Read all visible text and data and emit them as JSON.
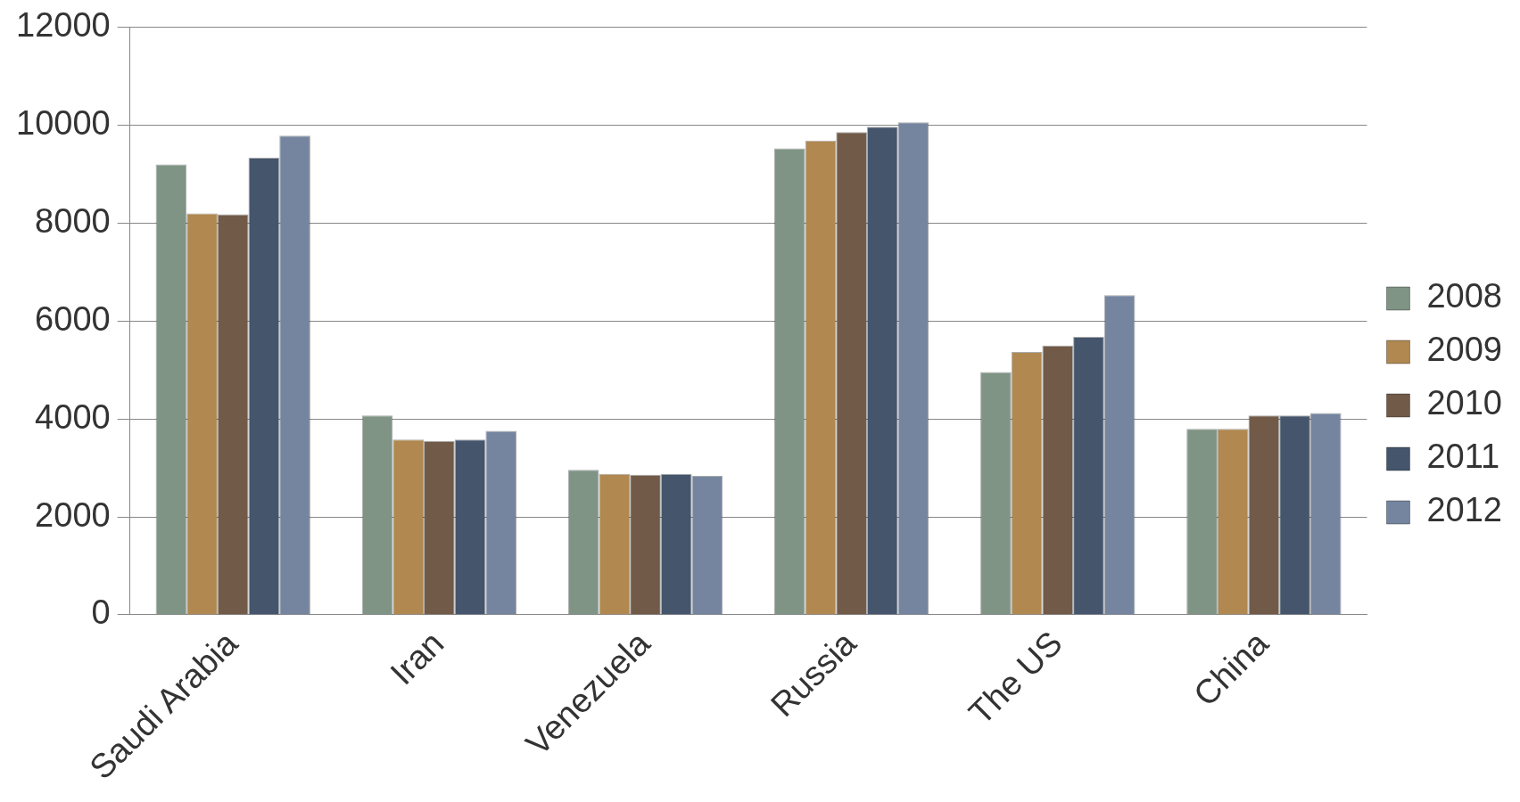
{
  "chart_data": {
    "type": "bar",
    "categories": [
      "Saudi Arabia",
      "Iran",
      "Venezuela",
      "Russia",
      "The US",
      "China"
    ],
    "series": [
      {
        "name": "2008",
        "color": "#7f9484",
        "values": [
          9200,
          4070,
          2960,
          9530,
          4960,
          3800
        ]
      },
      {
        "name": "2009",
        "color": "#b08850",
        "values": [
          8200,
          3580,
          2880,
          9690,
          5370,
          3800
        ]
      },
      {
        "name": "2010",
        "color": "#725a48",
        "values": [
          8180,
          3550,
          2860,
          9860,
          5500,
          4070
        ]
      },
      {
        "name": "2011",
        "color": "#44556c",
        "values": [
          9340,
          3580,
          2880,
          9970,
          5680,
          4070
        ]
      },
      {
        "name": "2012",
        "color": "#7585a0",
        "values": [
          9790,
          3760,
          2840,
          10060,
          6530,
          4120
        ]
      }
    ],
    "ylim": [
      0,
      12000
    ],
    "yticks": [
      0,
      2000,
      4000,
      6000,
      8000,
      10000,
      12000
    ],
    "grid": "y",
    "legend": "right"
  }
}
